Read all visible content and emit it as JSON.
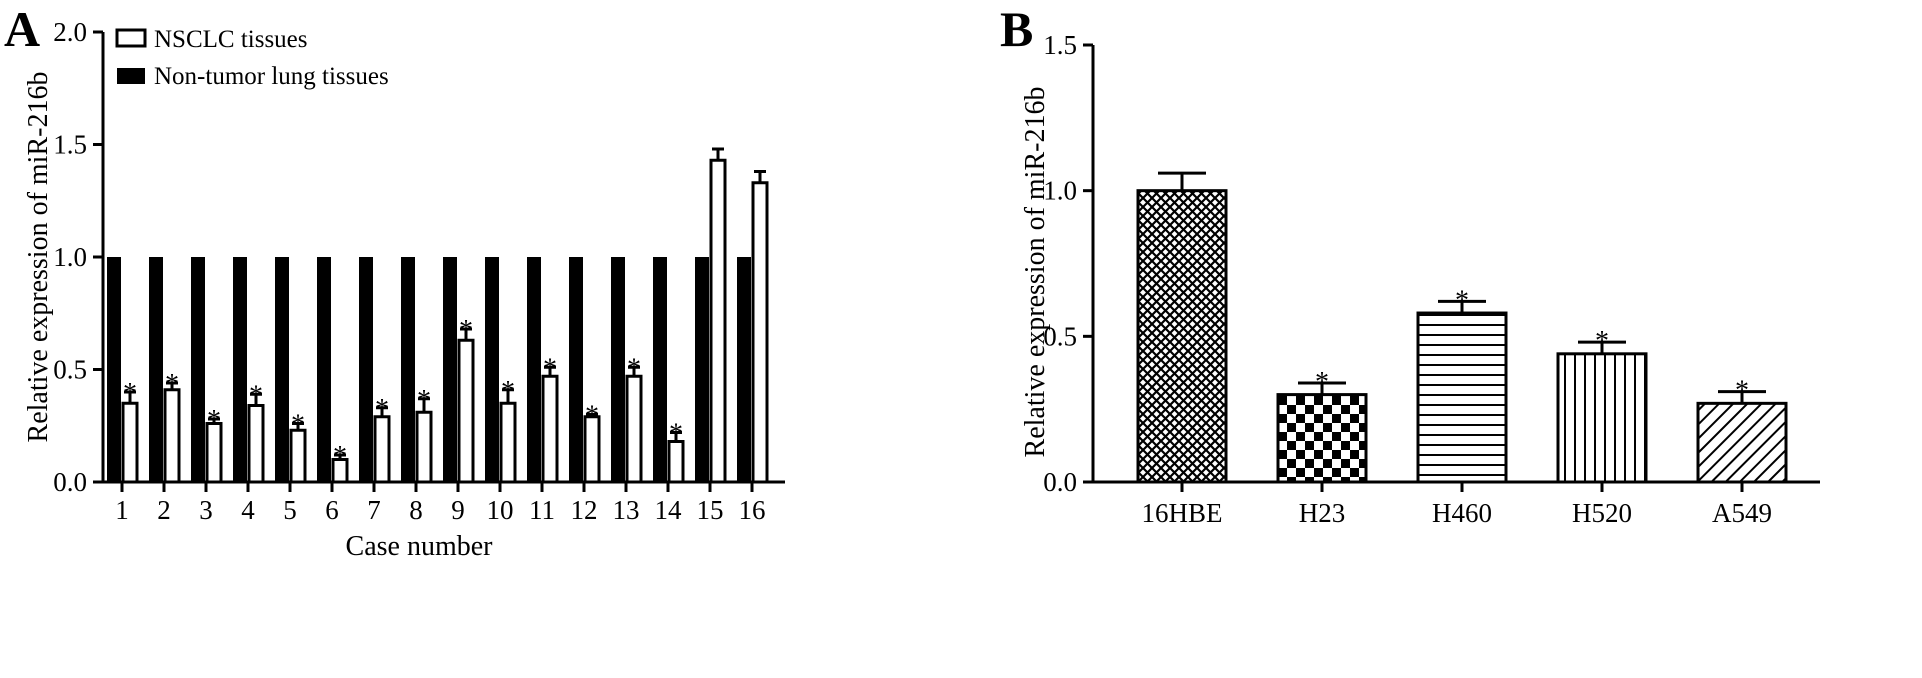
{
  "panels": {
    "a": {
      "letter": "A"
    },
    "b": {
      "letter": "B"
    }
  },
  "colors": {
    "black": "#000000",
    "white": "#ffffff"
  },
  "chart_data": [
    {
      "type": "bar",
      "panel": "A",
      "xlabel": "Case number",
      "ylabel": "Relative expression of miR-216b",
      "ylim": [
        0,
        2.0
      ],
      "yticks": [
        "0.0",
        "0.5",
        "1.0",
        "1.5",
        "2.0"
      ],
      "categories": [
        "1",
        "2",
        "3",
        "4",
        "5",
        "6",
        "7",
        "8",
        "9",
        "10",
        "11",
        "12",
        "13",
        "14",
        "15",
        "16"
      ],
      "legend_position": "top-left",
      "series": [
        {
          "name": "Non-tumor lung tissues",
          "fill": "black",
          "values": [
            1,
            1,
            1,
            1,
            1,
            1,
            1,
            1,
            1,
            1,
            1,
            1,
            1,
            1,
            1,
            1
          ]
        },
        {
          "name": "NSCLC tissues",
          "fill": "white",
          "values": [
            0.35,
            0.41,
            0.26,
            0.34,
            0.23,
            0.1,
            0.29,
            0.31,
            0.63,
            0.35,
            0.47,
            0.29,
            0.47,
            0.18,
            1.43,
            1.33
          ],
          "errors": [
            0.05,
            0.03,
            0.02,
            0.05,
            0.03,
            0.02,
            0.04,
            0.06,
            0.05,
            0.06,
            0.04,
            0.01,
            0.04,
            0.04,
            0.05,
            0.05
          ],
          "significance": [
            true,
            true,
            true,
            true,
            true,
            true,
            true,
            true,
            true,
            true,
            true,
            true,
            true,
            true,
            false,
            false
          ]
        }
      ],
      "significance_marker": "*"
    },
    {
      "type": "bar",
      "panel": "B",
      "xlabel": "",
      "ylabel": "Relative expression of miR-216b",
      "ylim": [
        0,
        1.5
      ],
      "yticks": [
        "0.0",
        "0.5",
        "1.0",
        "1.5"
      ],
      "categories": [
        "16HBE",
        "H23",
        "H460",
        "H520",
        "A549"
      ],
      "patterns": [
        "crosshatch",
        "checker",
        "horizontal",
        "vertical",
        "diagonal"
      ],
      "values": [
        1.0,
        0.3,
        0.58,
        0.44,
        0.27
      ],
      "errors": [
        0.06,
        0.04,
        0.04,
        0.04,
        0.04
      ],
      "significance": [
        false,
        true,
        true,
        true,
        true
      ],
      "significance_marker": "*"
    }
  ]
}
